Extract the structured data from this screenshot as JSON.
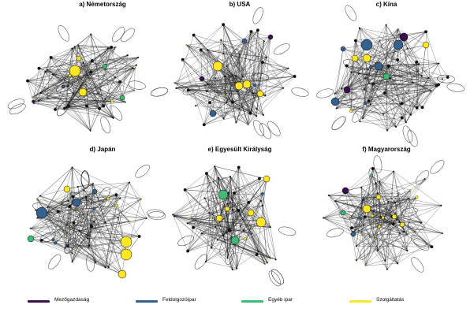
{
  "panels": [
    {
      "title": "a) Németország"
    },
    {
      "title": "b) USA"
    },
    {
      "title": "c) Kína"
    },
    {
      "title": "d) Japán"
    },
    {
      "title": "e) Egyesült Királyság"
    },
    {
      "title": "f) Magyarország"
    }
  ],
  "legend": [
    {
      "label": "Mezőgazdaság",
      "color": "#3b0f4f"
    },
    {
      "label": "Feldolgozóipar",
      "color": "#34618d"
    },
    {
      "label": "Egyéb ipar",
      "color": "#3fbc73"
    },
    {
      "label": "Szolgáltatás",
      "color": "#fde725"
    }
  ]
}
